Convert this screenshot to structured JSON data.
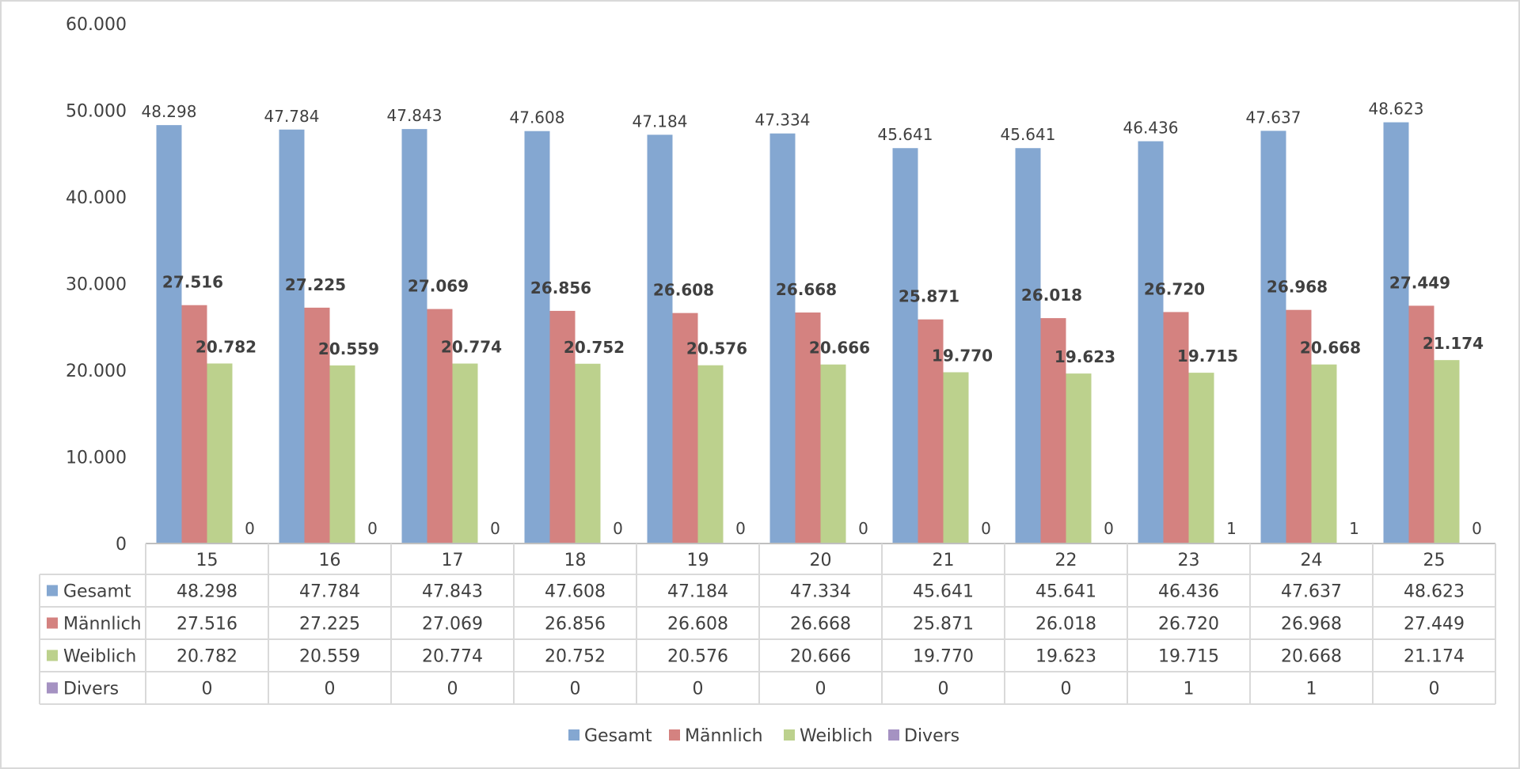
{
  "chart_data": {
    "type": "bar",
    "categories": [
      "15",
      "16",
      "17",
      "18",
      "19",
      "20",
      "21",
      "22",
      "23",
      "24",
      "25"
    ],
    "series": [
      {
        "name": "Gesamt",
        "color": "#84a7d1",
        "values": [
          48298,
          47784,
          47843,
          47608,
          47184,
          47334,
          45641,
          45641,
          46436,
          47637,
          48623
        ]
      },
      {
        "name": "Männlich",
        "color": "#d48280",
        "values": [
          27516,
          27225,
          27069,
          26856,
          26608,
          26668,
          25871,
          26018,
          26720,
          26968,
          27449
        ]
      },
      {
        "name": "Weiblich",
        "color": "#bcd18d",
        "values": [
          20782,
          20559,
          20774,
          20752,
          20576,
          20666,
          19770,
          19623,
          19715,
          20668,
          21174
        ]
      },
      {
        "name": "Divers",
        "color": "#a592c2",
        "values": [
          0,
          0,
          0,
          0,
          0,
          0,
          0,
          0,
          1,
          1,
          0
        ]
      }
    ],
    "ylim": [
      0,
      60000
    ],
    "yticks": [
      "0",
      "10.000",
      "20.000",
      "30.000",
      "40.000",
      "50.000",
      "60.000"
    ],
    "grid": false,
    "data_table": true,
    "legend": "bottom",
    "number_format": "de-DE"
  }
}
